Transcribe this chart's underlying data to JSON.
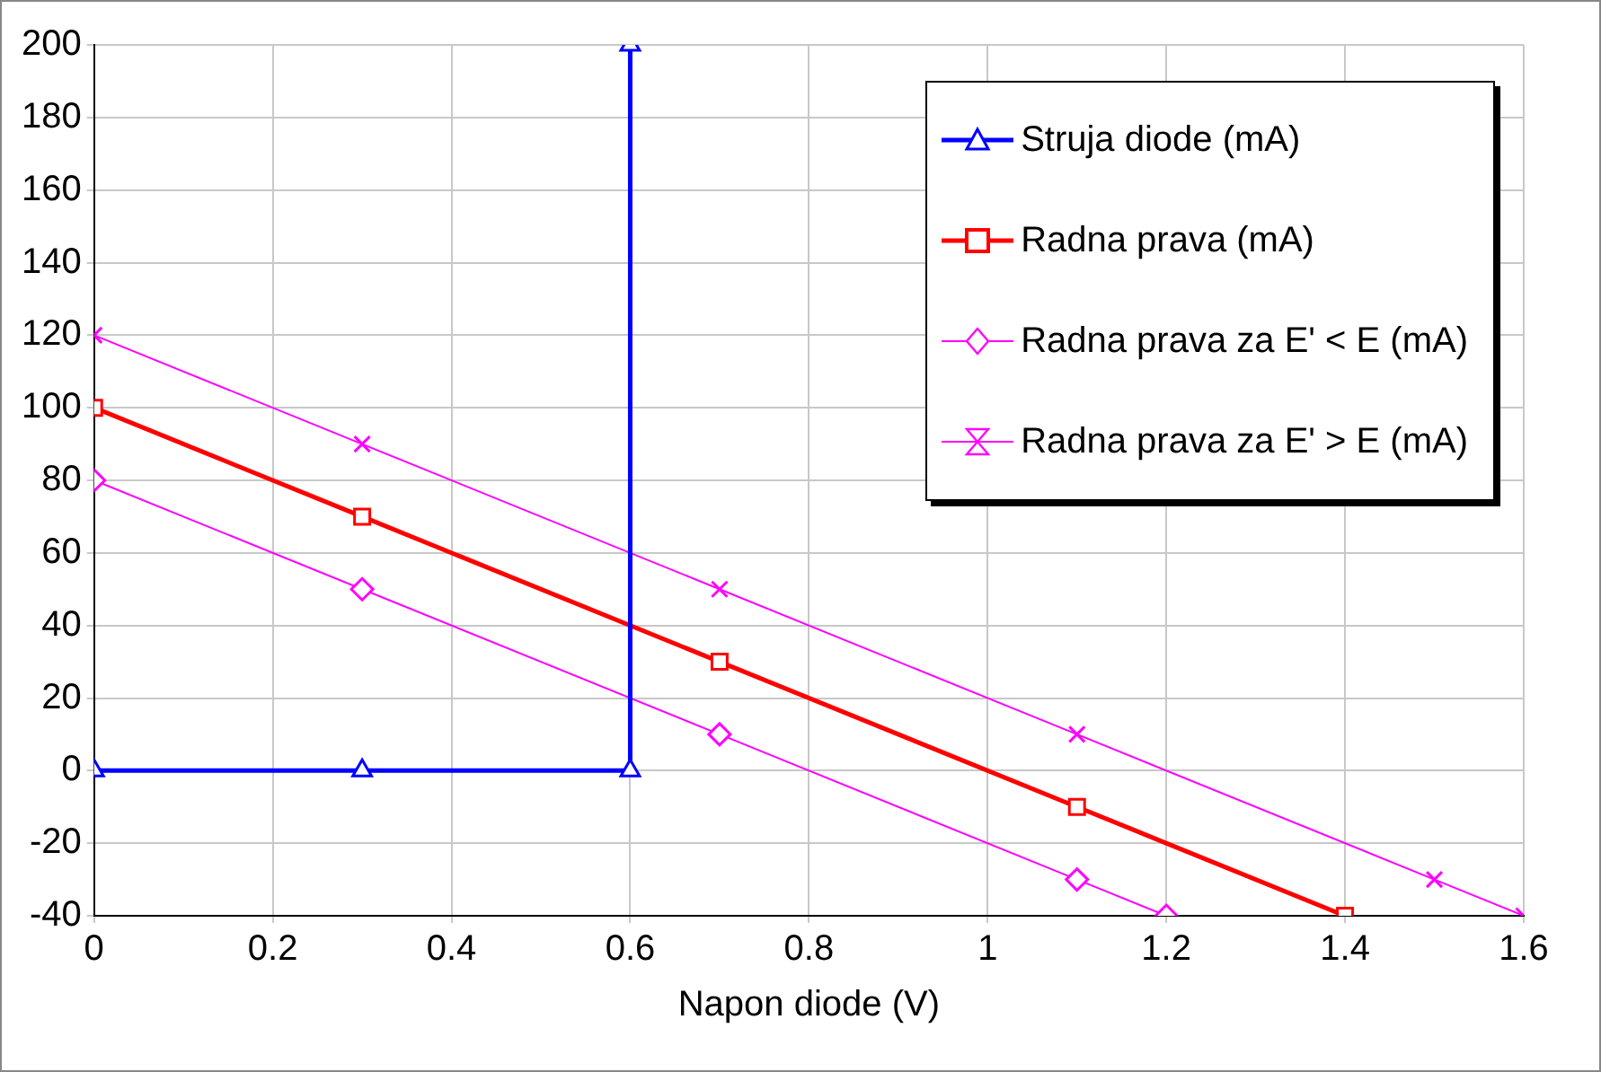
{
  "chart_data": {
    "type": "line",
    "xlabel": "Napon diode (V)",
    "xlim": [
      0,
      1.6
    ],
    "xticks": [
      0,
      0.2,
      0.4,
      0.6,
      0.8,
      {
        "value": 1,
        "label": "1"
      },
      1.2,
      1.4,
      1.6
    ],
    "ylim": [
      -40,
      200
    ],
    "yticks": [
      -40,
      -20,
      0,
      20,
      40,
      60,
      80,
      100,
      120,
      140,
      160,
      180,
      200
    ],
    "grid": true,
    "legend": "top right",
    "series": [
      {
        "name": "Struja diode (mA)",
        "color": "#0000ff",
        "marker": "triangle",
        "x": [
          0,
          0.3,
          0.6,
          0.6
        ],
        "values": [
          0,
          0,
          0,
          200
        ]
      },
      {
        "name": "Radna prava (mA)",
        "color": "#ff0000",
        "marker": "square",
        "x": [
          0,
          0.3,
          0.7,
          1.1,
          1.4
        ],
        "values": [
          100,
          70,
          30,
          -10,
          -40
        ]
      },
      {
        "name": "Radna prava za E' < E (mA)",
        "color": "#ff00ff",
        "marker": "diamond",
        "x": [
          0,
          0.3,
          0.7,
          1.1,
          1.2
        ],
        "values": [
          80,
          50,
          10,
          -30,
          -40
        ]
      },
      {
        "name": "Radna prava za E' > E (mA)",
        "color": "#ff00ff",
        "marker": "cross",
        "x": [
          0,
          0.3,
          0.7,
          1.1,
          1.5,
          1.6
        ],
        "values": [
          120,
          90,
          50,
          10,
          -30,
          -40
        ]
      }
    ]
  }
}
